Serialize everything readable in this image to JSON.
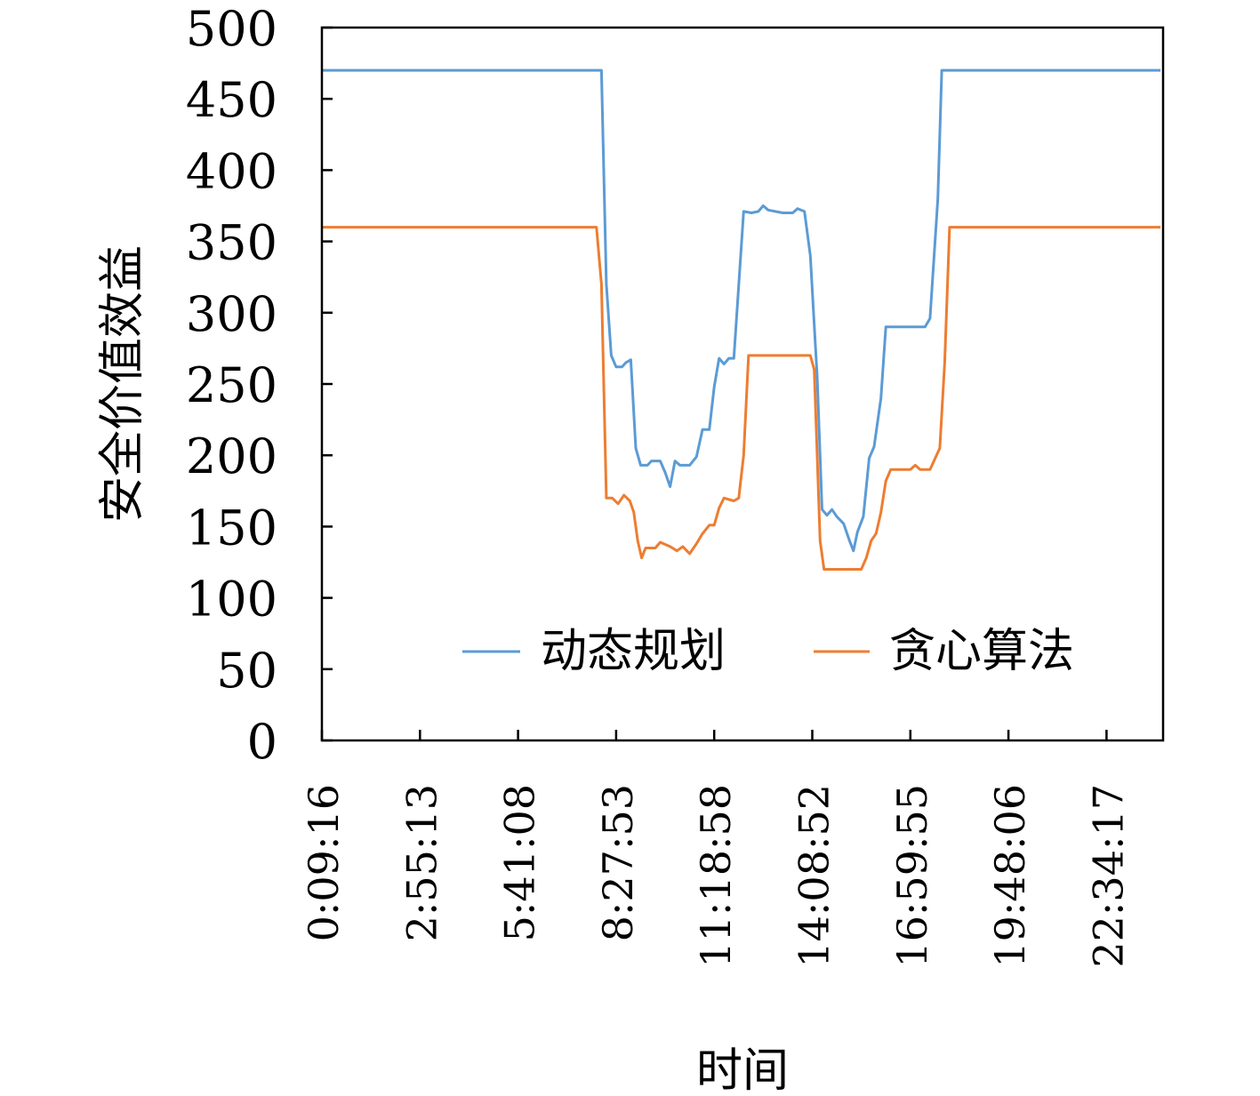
{
  "chart_data": {
    "type": "line",
    "title": "",
    "xlabel": "时间",
    "ylabel": "安全价值效益",
    "ylim": [
      0,
      500
    ],
    "y_ticks": [
      0,
      50,
      100,
      150,
      200,
      250,
      300,
      350,
      400,
      450,
      500
    ],
    "x_tick_labels": [
      "0:09:16",
      "2:55:13",
      "5:41:08",
      "8:27:53",
      "11:18:58",
      "14:08:52",
      "16:59:55",
      "19:48:06",
      "22:34:17"
    ],
    "grid": false,
    "legend_position": "bottom-right",
    "series": [
      {
        "name": "动态规划",
        "color": "#5b9bd5",
        "points": [
          [
            0.0,
            470
          ],
          [
            2.85,
            470
          ],
          [
            2.9,
            320
          ],
          [
            2.95,
            270
          ],
          [
            3.0,
            262
          ],
          [
            3.06,
            262
          ],
          [
            3.1,
            265
          ],
          [
            3.15,
            267
          ],
          [
            3.2,
            205
          ],
          [
            3.25,
            193
          ],
          [
            3.32,
            193
          ],
          [
            3.36,
            196
          ],
          [
            3.45,
            196
          ],
          [
            3.5,
            188
          ],
          [
            3.55,
            178
          ],
          [
            3.6,
            196
          ],
          [
            3.65,
            193
          ],
          [
            3.75,
            193
          ],
          [
            3.82,
            199
          ],
          [
            3.88,
            218
          ],
          [
            3.95,
            218
          ],
          [
            4.0,
            248
          ],
          [
            4.05,
            268
          ],
          [
            4.1,
            264
          ],
          [
            4.15,
            268
          ],
          [
            4.2,
            268
          ],
          [
            4.3,
            371
          ],
          [
            4.38,
            370
          ],
          [
            4.45,
            371
          ],
          [
            4.5,
            375
          ],
          [
            4.55,
            372
          ],
          [
            4.7,
            370
          ],
          [
            4.8,
            370
          ],
          [
            4.85,
            373
          ],
          [
            4.92,
            371
          ],
          [
            4.98,
            340
          ],
          [
            5.05,
            255
          ],
          [
            5.1,
            162
          ],
          [
            5.15,
            158
          ],
          [
            5.2,
            162
          ],
          [
            5.25,
            157
          ],
          [
            5.32,
            152
          ],
          [
            5.38,
            140
          ],
          [
            5.42,
            133
          ],
          [
            5.46,
            146
          ],
          [
            5.52,
            157
          ],
          [
            5.58,
            198
          ],
          [
            5.63,
            206
          ],
          [
            5.7,
            240
          ],
          [
            5.75,
            290
          ],
          [
            5.9,
            290
          ],
          [
            6.0,
            290
          ],
          [
            6.15,
            290
          ],
          [
            6.2,
            296
          ],
          [
            6.28,
            380
          ],
          [
            6.32,
            470
          ],
          [
            8.55,
            470
          ]
        ]
      },
      {
        "name": "贪心算法",
        "color": "#ed7d31",
        "points": [
          [
            0.0,
            360
          ],
          [
            2.8,
            360
          ],
          [
            2.85,
            320
          ],
          [
            2.9,
            170
          ],
          [
            2.96,
            170
          ],
          [
            3.02,
            166
          ],
          [
            3.08,
            172
          ],
          [
            3.14,
            168
          ],
          [
            3.18,
            160
          ],
          [
            3.22,
            140
          ],
          [
            3.26,
            128
          ],
          [
            3.3,
            135
          ],
          [
            3.4,
            135
          ],
          [
            3.45,
            139
          ],
          [
            3.55,
            136
          ],
          [
            3.62,
            133
          ],
          [
            3.68,
            136
          ],
          [
            3.75,
            131
          ],
          [
            3.82,
            138
          ],
          [
            3.88,
            145
          ],
          [
            3.95,
            151
          ],
          [
            4.0,
            151
          ],
          [
            4.05,
            163
          ],
          [
            4.1,
            170
          ],
          [
            4.2,
            168
          ],
          [
            4.25,
            170
          ],
          [
            4.3,
            200
          ],
          [
            4.35,
            270
          ],
          [
            4.45,
            270
          ],
          [
            4.6,
            270
          ],
          [
            4.8,
            270
          ],
          [
            4.98,
            270
          ],
          [
            5.02,
            260
          ],
          [
            5.08,
            140
          ],
          [
            5.12,
            120
          ],
          [
            5.25,
            120
          ],
          [
            5.4,
            120
          ],
          [
            5.5,
            120
          ],
          [
            5.55,
            128
          ],
          [
            5.6,
            140
          ],
          [
            5.65,
            145
          ],
          [
            5.7,
            160
          ],
          [
            5.75,
            182
          ],
          [
            5.8,
            190
          ],
          [
            5.9,
            190
          ],
          [
            6.0,
            190
          ],
          [
            6.05,
            193
          ],
          [
            6.1,
            190
          ],
          [
            6.2,
            190
          ],
          [
            6.3,
            205
          ],
          [
            6.35,
            265
          ],
          [
            6.4,
            360
          ],
          [
            8.55,
            360
          ]
        ]
      }
    ]
  }
}
